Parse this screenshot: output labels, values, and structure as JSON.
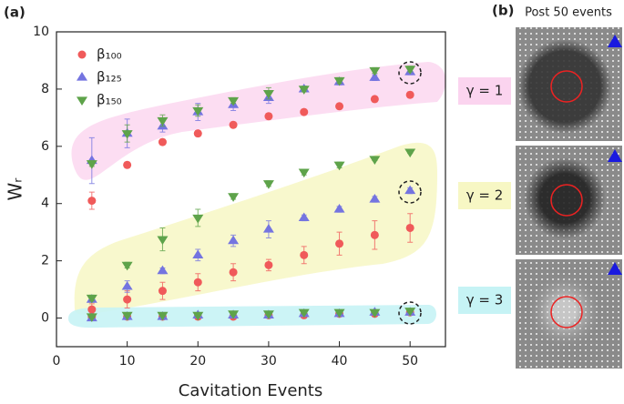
{
  "chart_data": {
    "type": "scatter",
    "panel_label": "(a)",
    "x_label": "Cavitation Events",
    "y_label": "Wᵣ",
    "x": [
      5,
      10,
      15,
      20,
      25,
      30,
      35,
      40,
      45,
      50
    ],
    "xlim": [
      0,
      55
    ],
    "xticks": [
      0,
      10,
      20,
      30,
      40,
      50
    ],
    "ylim": [
      -1,
      10
    ],
    "yticks": [
      0,
      2,
      4,
      6,
      8,
      10
    ],
    "series": [
      {
        "name": "β₁₀₀",
        "color": "#f05a5a",
        "marker": "circle",
        "groups": [
          {
            "values": [
              4.1,
              5.35,
              6.15,
              6.45,
              6.75,
              7.05,
              7.2,
              7.4,
              7.65,
              7.8
            ],
            "errors": [
              0.3,
              0.1,
              0.1,
              0.1,
              0.1,
              0.1,
              0.05,
              0.05,
              0.05,
              0.1
            ]
          },
          {
            "values": [
              0.3,
              0.65,
              0.95,
              1.25,
              1.6,
              1.85,
              2.2,
              2.6,
              2.9,
              3.15
            ],
            "errors": [
              0.2,
              0.3,
              0.3,
              0.3,
              0.3,
              0.2,
              0.3,
              0.4,
              0.5,
              0.5
            ]
          },
          {
            "values": [
              0.05,
              0.05,
              0.05,
              0.05,
              0.05,
              0.1,
              0.1,
              0.15,
              0.15,
              0.2
            ],
            "errors": [
              0.05,
              0.05,
              0.05,
              0.05,
              0.05,
              0.05,
              0.05,
              0.05,
              0.05,
              0.05
            ]
          }
        ]
      },
      {
        "name": "β₁₂₅",
        "color": "#7474e0",
        "marker": "triangle-up",
        "groups": [
          {
            "values": [
              5.5,
              6.45,
              6.7,
              7.2,
              7.45,
              7.7,
              8.0,
              8.25,
              8.4,
              8.6
            ],
            "errors": [
              0.8,
              0.5,
              0.2,
              0.3,
              0.2,
              0.2,
              0.1,
              0.1,
              0.1,
              0.1
            ]
          },
          {
            "values": [
              0.65,
              1.1,
              1.65,
              2.2,
              2.7,
              3.1,
              3.5,
              3.8,
              4.15,
              4.45
            ],
            "errors": [
              0.1,
              0.2,
              0.1,
              0.2,
              0.2,
              0.3,
              0.1,
              0.1,
              0.1,
              0.1
            ]
          },
          {
            "values": [
              0.0,
              0.05,
              0.05,
              0.1,
              0.1,
              0.1,
              0.15,
              0.15,
              0.2,
              0.2
            ],
            "errors": [
              0.05,
              0.05,
              0.05,
              0.05,
              0.05,
              0.05,
              0.05,
              0.05,
              0.05,
              0.05
            ]
          }
        ]
      },
      {
        "name": "β₁₅₀",
        "color": "#5ea34a",
        "marker": "triangle-down",
        "groups": [
          {
            "values": [
              5.4,
              6.45,
              6.9,
              7.25,
              7.6,
              7.85,
              8.0,
              8.3,
              8.65,
              8.7
            ],
            "errors": [
              0.1,
              0.3,
              0.2,
              0.2,
              0.1,
              0.2,
              0.1,
              0.1,
              0.1,
              0.1
            ]
          },
          {
            "values": [
              0.7,
              1.85,
              2.75,
              3.5,
              4.25,
              4.7,
              5.1,
              5.35,
              5.55,
              5.8
            ],
            "errors": [
              0.1,
              0.1,
              0.4,
              0.3,
              0.1,
              0.1,
              0.1,
              0.1,
              0.05,
              0.05
            ]
          },
          {
            "values": [
              0.05,
              0.1,
              0.1,
              0.1,
              0.15,
              0.15,
              0.2,
              0.2,
              0.2,
              0.25
            ],
            "errors": [
              0.05,
              0.05,
              0.05,
              0.05,
              0.05,
              0.05,
              0.05,
              0.05,
              0.05,
              0.05
            ]
          }
        ]
      }
    ],
    "images_panel": {
      "panel_label": "(b)",
      "title": "Post 50 events",
      "groups": [
        "γ = 1",
        "γ = 2",
        "γ = 3"
      ]
    }
  }
}
